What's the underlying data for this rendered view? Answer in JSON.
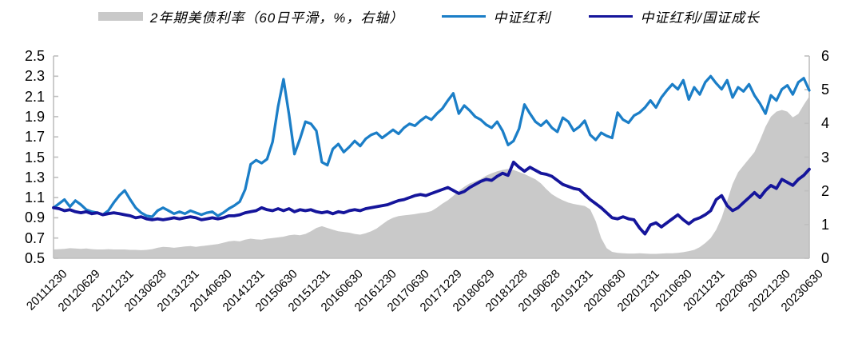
{
  "legend": {
    "items": [
      {
        "label": "2年期美债利率（60日平滑，%，右轴）",
        "color": "#C9C9C9",
        "swatch": "area"
      },
      {
        "label": "中证红利",
        "color": "#1B7EC7",
        "swatch": "line"
      },
      {
        "label": "中证红利/国证成长",
        "color": "#15159B",
        "swatch": "line"
      }
    ]
  },
  "chart_data": {
    "type": "line",
    "title": "",
    "grid": false,
    "legend_position": "top",
    "background": "#FFFFFF",
    "axis_line_color": "#BFBFBF",
    "x_tick_labels": [
      "20111230",
      "20120629",
      "20121231",
      "20130628",
      "20131231",
      "20140630",
      "20141231",
      "20150630",
      "20151231",
      "20160630",
      "20161230",
      "20170630",
      "20171229",
      "20180629",
      "20181228",
      "20190628",
      "20191231",
      "20200630",
      "20201231",
      "20210630",
      "20211231",
      "20220630",
      "20221230",
      "20230630"
    ],
    "x_points_per_tick_interval": 6,
    "left_axis": {
      "min": 0.5,
      "max": 2.5,
      "tick_labels": [
        "2.5",
        "2.3",
        "2.1",
        "1.9",
        "1.7",
        "1.5",
        "1.3",
        "1.1",
        "0.9",
        "0.7",
        "0.5"
      ]
    },
    "right_axis": {
      "min": 0,
      "max": 6,
      "tick_labels": [
        "6",
        "5",
        "4",
        "3",
        "2",
        "1",
        "0"
      ]
    },
    "series": [
      {
        "name": "2年期美债利率（60日平滑，%，右轴）",
        "type": "area",
        "axis": "right",
        "color": "#C9C9C9",
        "values": [
          0.26,
          0.27,
          0.28,
          0.3,
          0.29,
          0.28,
          0.29,
          0.27,
          0.26,
          0.26,
          0.27,
          0.26,
          0.26,
          0.26,
          0.25,
          0.25,
          0.24,
          0.25,
          0.27,
          0.31,
          0.34,
          0.33,
          0.31,
          0.33,
          0.35,
          0.36,
          0.34,
          0.36,
          0.38,
          0.4,
          0.42,
          0.46,
          0.5,
          0.52,
          0.5,
          0.55,
          0.58,
          0.56,
          0.55,
          0.58,
          0.6,
          0.62,
          0.64,
          0.68,
          0.7,
          0.68,
          0.72,
          0.8,
          0.9,
          0.95,
          0.9,
          0.85,
          0.8,
          0.78,
          0.76,
          0.72,
          0.7,
          0.74,
          0.8,
          0.88,
          1.0,
          1.12,
          1.2,
          1.25,
          1.27,
          1.29,
          1.31,
          1.34,
          1.36,
          1.4,
          1.5,
          1.62,
          1.72,
          1.85,
          2.0,
          2.12,
          2.22,
          2.28,
          2.35,
          2.45,
          2.52,
          2.58,
          2.62,
          2.65,
          2.62,
          2.56,
          2.5,
          2.42,
          2.34,
          2.22,
          2.05,
          1.9,
          1.8,
          1.72,
          1.65,
          1.61,
          1.58,
          1.55,
          1.45,
          1.1,
          0.6,
          0.3,
          0.19,
          0.16,
          0.15,
          0.14,
          0.14,
          0.15,
          0.14,
          0.13,
          0.13,
          0.14,
          0.15,
          0.15,
          0.16,
          0.18,
          0.21,
          0.25,
          0.33,
          0.45,
          0.6,
          0.85,
          1.2,
          1.7,
          2.2,
          2.55,
          2.75,
          2.95,
          3.15,
          3.5,
          3.9,
          4.2,
          4.35,
          4.4,
          4.35,
          4.18,
          4.28,
          4.55,
          4.8
        ]
      },
      {
        "name": "中证红利",
        "type": "line",
        "axis": "left",
        "color": "#1B7EC7",
        "stroke_width": 3.3,
        "values": [
          1.0,
          1.04,
          1.08,
          1.01,
          1.07,
          1.03,
          0.98,
          0.96,
          0.95,
          0.93,
          0.97,
          1.05,
          1.12,
          1.17,
          1.08,
          1.0,
          0.95,
          0.92,
          0.91,
          0.97,
          1.0,
          0.97,
          0.94,
          0.96,
          0.94,
          0.97,
          0.95,
          0.93,
          0.95,
          0.96,
          0.92,
          0.95,
          0.99,
          1.02,
          1.06,
          1.18,
          1.43,
          1.47,
          1.44,
          1.48,
          1.65,
          2.0,
          2.27,
          1.92,
          1.53,
          1.68,
          1.85,
          1.83,
          1.76,
          1.45,
          1.42,
          1.58,
          1.63,
          1.55,
          1.6,
          1.66,
          1.61,
          1.68,
          1.72,
          1.74,
          1.69,
          1.73,
          1.77,
          1.73,
          1.79,
          1.83,
          1.81,
          1.86,
          1.9,
          1.87,
          1.93,
          1.98,
          2.06,
          2.13,
          1.93,
          2.01,
          1.96,
          1.9,
          1.87,
          1.82,
          1.79,
          1.85,
          1.76,
          1.62,
          1.66,
          1.78,
          2.02,
          1.93,
          1.85,
          1.81,
          1.86,
          1.79,
          1.75,
          1.89,
          1.85,
          1.76,
          1.8,
          1.86,
          1.72,
          1.67,
          1.74,
          1.71,
          1.69,
          1.94,
          1.87,
          1.84,
          1.91,
          1.94,
          1.99,
          2.06,
          1.99,
          2.09,
          2.16,
          2.22,
          2.17,
          2.26,
          2.07,
          2.19,
          2.12,
          2.24,
          2.3,
          2.23,
          2.17,
          2.26,
          2.09,
          2.19,
          2.15,
          2.22,
          2.11,
          2.03,
          1.93,
          2.11,
          2.06,
          2.17,
          2.21,
          2.12,
          2.24,
          2.28,
          2.16
        ]
      },
      {
        "name": "中证红利/国证成长",
        "type": "line",
        "axis": "left",
        "color": "#15159B",
        "stroke_width": 3.8,
        "values": [
          1.0,
          0.99,
          0.97,
          0.98,
          0.96,
          0.95,
          0.96,
          0.94,
          0.95,
          0.93,
          0.94,
          0.95,
          0.94,
          0.93,
          0.92,
          0.9,
          0.91,
          0.89,
          0.88,
          0.89,
          0.88,
          0.89,
          0.9,
          0.89,
          0.9,
          0.91,
          0.9,
          0.88,
          0.89,
          0.9,
          0.89,
          0.9,
          0.92,
          0.92,
          0.93,
          0.95,
          0.96,
          0.97,
          1.0,
          0.98,
          0.97,
          0.99,
          0.97,
          0.99,
          0.96,
          0.98,
          0.97,
          0.98,
          0.96,
          0.95,
          0.96,
          0.94,
          0.96,
          0.95,
          0.97,
          0.98,
          0.97,
          0.99,
          1.0,
          1.01,
          1.02,
          1.03,
          1.05,
          1.07,
          1.08,
          1.1,
          1.12,
          1.13,
          1.12,
          1.14,
          1.16,
          1.18,
          1.2,
          1.17,
          1.14,
          1.16,
          1.2,
          1.23,
          1.26,
          1.28,
          1.27,
          1.31,
          1.34,
          1.32,
          1.45,
          1.4,
          1.36,
          1.4,
          1.37,
          1.34,
          1.33,
          1.31,
          1.27,
          1.23,
          1.21,
          1.19,
          1.18,
          1.13,
          1.08,
          1.04,
          1.0,
          0.95,
          0.9,
          0.89,
          0.91,
          0.89,
          0.88,
          0.8,
          0.74,
          0.83,
          0.85,
          0.81,
          0.85,
          0.89,
          0.93,
          0.88,
          0.84,
          0.88,
          0.9,
          0.93,
          0.97,
          1.08,
          1.12,
          1.02,
          0.97,
          1.0,
          1.05,
          1.1,
          1.15,
          1.1,
          1.17,
          1.22,
          1.19,
          1.28,
          1.25,
          1.22,
          1.28,
          1.32,
          1.38
        ]
      }
    ]
  }
}
